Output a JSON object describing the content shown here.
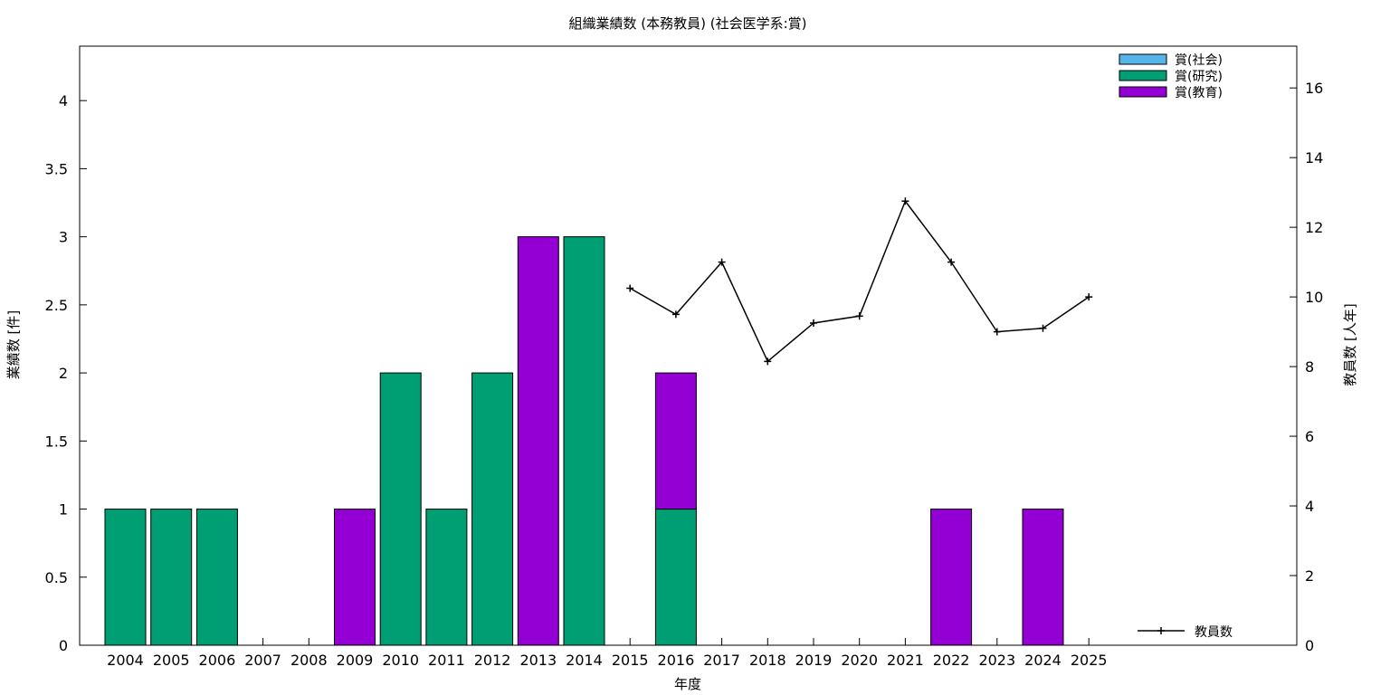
{
  "chart_data": {
    "type": "bar",
    "title": "組織業績数 (本務教員) (社会医学系:賞)",
    "xlabel": "年度",
    "ylabel": "業績数 [件]",
    "y2label": "教員数 [人年]",
    "categories": [
      "2004",
      "2005",
      "2006",
      "2007",
      "2008",
      "2009",
      "2010",
      "2011",
      "2012",
      "2013",
      "2014",
      "2015",
      "2016",
      "2017",
      "2018",
      "2019",
      "2020",
      "2021",
      "2022",
      "2023",
      "2024",
      "2025"
    ],
    "stacked": true,
    "ylim": [
      0,
      4.4
    ],
    "yticks": [
      "0",
      "0.5",
      "1",
      "1.5",
      "2",
      "2.5",
      "3",
      "3.5",
      "4"
    ],
    "y2lim": [
      0,
      17.2
    ],
    "y2ticks": [
      "0",
      "2",
      "4",
      "6",
      "8",
      "10",
      "12",
      "14",
      "16"
    ],
    "legend_position": "top-right",
    "grid": false,
    "series": [
      {
        "name": "賞(社会)",
        "color": "#56b4e9",
        "values": [
          0,
          0,
          0,
          0,
          0,
          0,
          0,
          0,
          0,
          0,
          0,
          0,
          0,
          0,
          0,
          0,
          0,
          0,
          0,
          0,
          0,
          0
        ]
      },
      {
        "name": "賞(研究)",
        "color": "#009e73",
        "values": [
          1,
          1,
          1,
          0,
          0,
          0,
          2,
          1,
          2,
          0,
          3,
          0,
          1,
          0,
          0,
          0,
          0,
          0,
          0,
          0,
          0,
          0
        ]
      },
      {
        "name": "賞(教育)",
        "color": "#9400d3",
        "values": [
          0,
          0,
          0,
          0,
          0,
          1,
          0,
          0,
          0,
          3,
          0,
          0,
          1,
          0,
          0,
          0,
          0,
          0,
          1,
          0,
          1,
          0
        ]
      }
    ],
    "line_series": {
      "name": "教員数",
      "axis": "y2",
      "color": "#000000",
      "x": [
        "2015",
        "2016",
        "2017",
        "2018",
        "2019",
        "2020",
        "2021",
        "2022",
        "2023",
        "2024",
        "2025"
      ],
      "values": [
        10.25,
        9.5,
        11.0,
        8.15,
        9.25,
        9.45,
        12.75,
        11.0,
        9.0,
        9.1,
        10.0
      ]
    }
  }
}
